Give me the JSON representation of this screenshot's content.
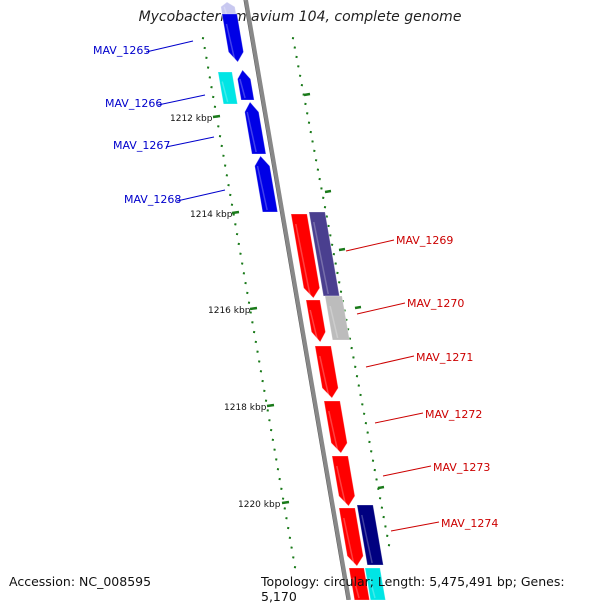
{
  "title": "Mycobacterium avium 104, complete genome",
  "footer": {
    "accession": "Accession: NC_008595",
    "summary": "Topology: circular; Length: 5,475,491 bp; Genes: 5,170"
  },
  "ticks": [
    {
      "label": "1212 kbp"
    },
    {
      "label": "1214 kbp"
    },
    {
      "label": "1216 kbp"
    },
    {
      "label": "1218 kbp"
    },
    {
      "label": "1220 kbp"
    }
  ],
  "genes": [
    {
      "label": "MAV_1265",
      "strand": "left"
    },
    {
      "label": "MAV_1266",
      "strand": "left"
    },
    {
      "label": "MAV_1267",
      "strand": "left"
    },
    {
      "label": "MAV_1268",
      "strand": "left"
    },
    {
      "label": "MAV_1269",
      "strand": "right"
    },
    {
      "label": "MAV_1270",
      "strand": "right"
    },
    {
      "label": "MAV_1271",
      "strand": "right"
    },
    {
      "label": "MAV_1272",
      "strand": "right"
    },
    {
      "label": "MAV_1273",
      "strand": "right"
    },
    {
      "label": "MAV_1274",
      "strand": "right"
    }
  ],
  "colors": {
    "left_label": "#0000cc",
    "right_label": "#cc0000",
    "cds_blue": "#0000e6",
    "cds_cyan": "#00e5e5",
    "cds_red": "#ff0000",
    "cds_purple": "#4a3f8f",
    "cds_gray": "#bcbcbc",
    "cds_navy": "#000080",
    "backbone": "#888888",
    "tick_green": "#1a7a1a"
  }
}
